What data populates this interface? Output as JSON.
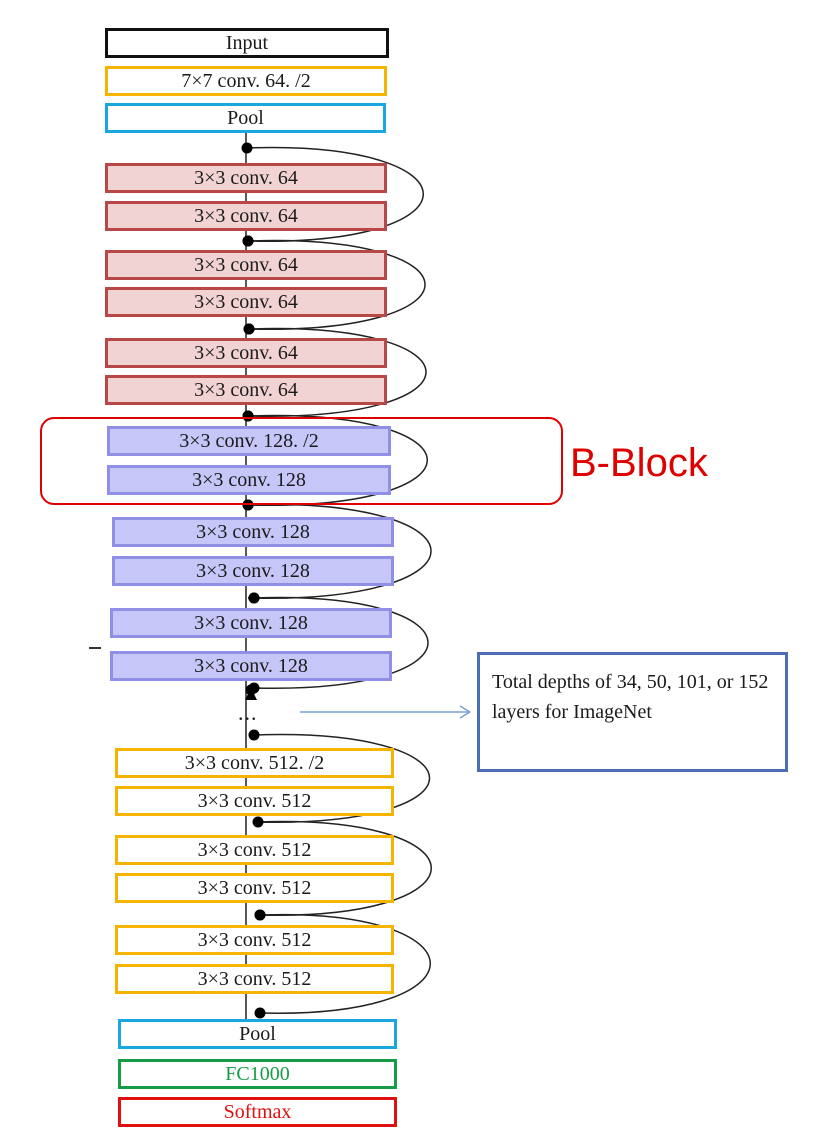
{
  "layers": [
    {
      "label": "Input",
      "kind": "input"
    },
    {
      "label": "7×7 conv. 64. /2",
      "kind": "yellow"
    },
    {
      "label": "Pool",
      "kind": "blue"
    },
    {
      "label": "3×3 conv. 64",
      "kind": "red"
    },
    {
      "label": "3×3 conv. 64",
      "kind": "red"
    },
    {
      "label": "3×3 conv. 64",
      "kind": "red"
    },
    {
      "label": "3×3 conv. 64",
      "kind": "red"
    },
    {
      "label": "3×3 conv. 64",
      "kind": "red"
    },
    {
      "label": "3×3 conv. 64",
      "kind": "red"
    },
    {
      "label": "3×3 conv. 128. /2",
      "kind": "purple"
    },
    {
      "label": "3×3 conv. 128",
      "kind": "purple"
    },
    {
      "label": "3×3 conv. 128",
      "kind": "purple"
    },
    {
      "label": "3×3 conv. 128",
      "kind": "purple"
    },
    {
      "label": "3×3 conv. 128",
      "kind": "purple"
    },
    {
      "label": "3×3 conv. 128",
      "kind": "purple"
    },
    {
      "label": "3×3 conv. 512. /2",
      "kind": "yellow"
    },
    {
      "label": "3×3 conv. 512",
      "kind": "yellow"
    },
    {
      "label": "3×3 conv. 512",
      "kind": "yellow"
    },
    {
      "label": "3×3 conv. 512",
      "kind": "yellow"
    },
    {
      "label": "3×3 conv. 512",
      "kind": "yellow"
    },
    {
      "label": "3×3 conv. 512",
      "kind": "yellow"
    },
    {
      "label": "Pool",
      "kind": "blue"
    },
    {
      "label": "FC1000",
      "kind": "green"
    },
    {
      "label": "Softmax",
      "kind": "softmax"
    }
  ],
  "ellipsis": "...",
  "block_label": "B-Block",
  "note": "Total depths of 34, 50, 101, or 152 layers for ImageNet",
  "colors": {
    "input_border": "#111111",
    "yellow_border": "#f5b400",
    "blue_border": "#1aa7e0",
    "red_border": "#b84848",
    "red_fill": "#f2d3d3",
    "purple_border": "#8f8fe6",
    "purple_fill": "#c6c6f8",
    "green_border": "#169c45",
    "green_text": "#169c45",
    "softmax_border": "#e01010",
    "softmax_text": "#e01010",
    "block_outline": "#e00000",
    "note_border": "#4a6fb0",
    "arrow": "#7aa0d6"
  }
}
